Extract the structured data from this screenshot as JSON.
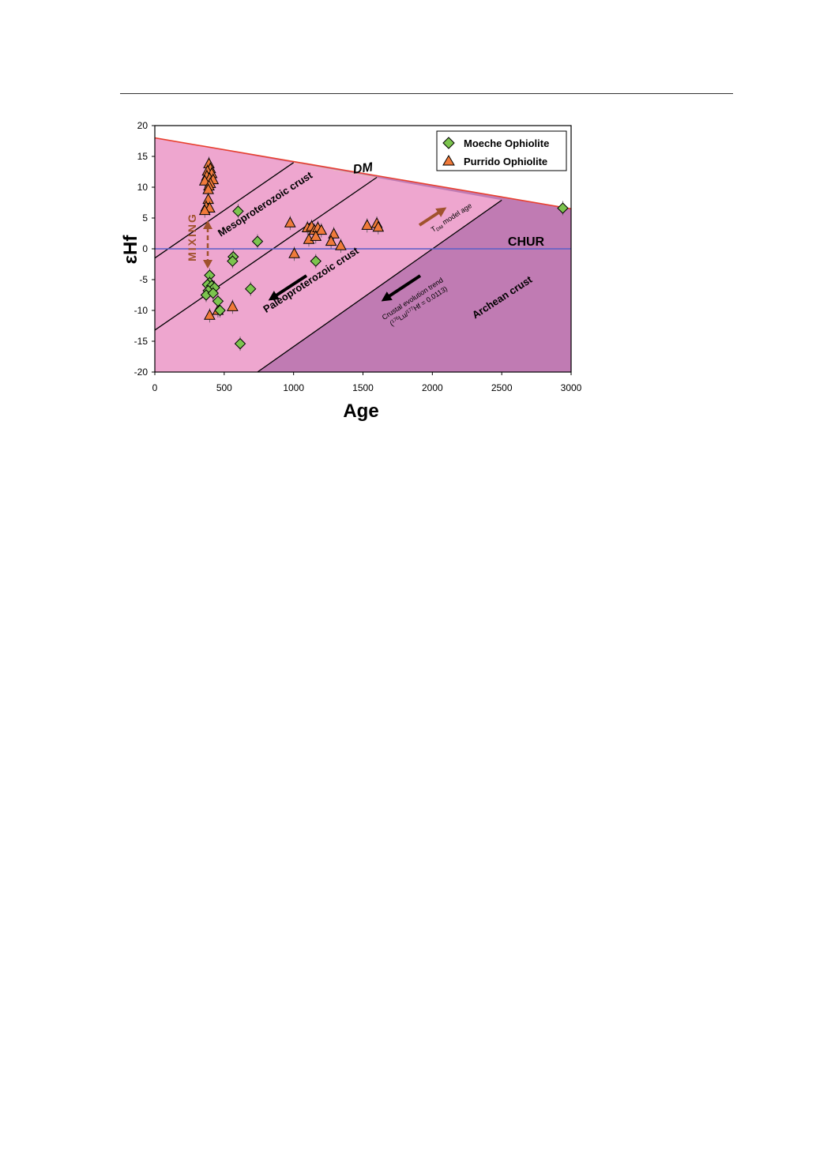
{
  "chart_data": {
    "type": "scatter",
    "xlabel": "Age",
    "ylabel": "εHf",
    "xlim": [
      0,
      3000
    ],
    "ylim": [
      -20,
      20
    ],
    "xticks": [
      0,
      500,
      1000,
      1500,
      2000,
      2500,
      3000
    ],
    "yticks": [
      20,
      15,
      10,
      5,
      0,
      -5,
      -10,
      -15,
      -20
    ],
    "legend_position": "top-right",
    "reference_lines": {
      "dm": {
        "label": "DM",
        "color": "#e8402f",
        "from": [
          0,
          18
        ],
        "to": [
          3000,
          6.5
        ]
      },
      "chur": {
        "label": "CHUR",
        "color": "#5a5fc8",
        "y": 0
      }
    },
    "regions": {
      "meso": {
        "label": "Mesoproterozoic crust",
        "color": "#fbee9a"
      },
      "paleo": {
        "label": "Paleoproterozoic crust",
        "color": "#eea6cf"
      },
      "archean": {
        "label": "Archean crust",
        "color": "#c07bb3"
      }
    },
    "region_boundaries": [
      {
        "from": [
          0,
          -1.5
        ],
        "to": [
          1000,
          14
        ]
      },
      {
        "from": [
          0,
          -13.2
        ],
        "to": [
          1600,
          11.6
        ]
      },
      {
        "from": [
          740,
          -20
        ],
        "to": [
          2500,
          7.9
        ]
      }
    ],
    "annotations": {
      "mixing": "MIXING",
      "model_age_main": "T",
      "model_age_sub": "DM",
      "model_age_rest": " model age",
      "trend_line1": "Crustal evolution trend",
      "trend_line2_a": "(",
      "trend_line2_sup1": "176",
      "trend_line2_b": "Lu/",
      "trend_line2_sup2": "177",
      "trend_line2_c": "Hf = 0.0113)"
    },
    "series": [
      {
        "name": "Moeche Ophiolite",
        "marker": "diamond",
        "color": "#7cc44e",
        "points": [
          [
            600,
            6.1
          ],
          [
            740,
            1.2
          ],
          [
            565,
            -1.3
          ],
          [
            560,
            -2.0
          ],
          [
            1160,
            -2.0
          ],
          [
            395,
            -4.3
          ],
          [
            395,
            -5.5
          ],
          [
            380,
            -5.8
          ],
          [
            410,
            -6.0
          ],
          [
            430,
            -6.3
          ],
          [
            385,
            -6.8
          ],
          [
            370,
            -7.5
          ],
          [
            420,
            -7.2
          ],
          [
            455,
            -8.5
          ],
          [
            470,
            -10.0
          ],
          [
            690,
            -6.5
          ],
          [
            615,
            -15.4
          ],
          [
            2940,
            6.6
          ]
        ]
      },
      {
        "name": "Purrido Ophiolite",
        "marker": "triangle",
        "color": "#f07a3a",
        "points": [
          [
            390,
            13.8
          ],
          [
            400,
            13.0
          ],
          [
            380,
            12.6
          ],
          [
            410,
            12.2
          ],
          [
            375,
            11.8
          ],
          [
            395,
            11.4
          ],
          [
            420,
            11.2
          ],
          [
            360,
            11.0
          ],
          [
            400,
            10.6
          ],
          [
            390,
            10.2
          ],
          [
            385,
            9.6
          ],
          [
            385,
            8.0
          ],
          [
            370,
            6.8
          ],
          [
            395,
            6.6
          ],
          [
            360,
            6.2
          ],
          [
            975,
            4.2
          ],
          [
            1005,
            -0.8
          ],
          [
            1100,
            3.4
          ],
          [
            1130,
            3.6
          ],
          [
            1150,
            3.0
          ],
          [
            1175,
            3.4
          ],
          [
            1200,
            3.0
          ],
          [
            1110,
            1.5
          ],
          [
            1160,
            2.0
          ],
          [
            1290,
            2.4
          ],
          [
            1270,
            1.2
          ],
          [
            1340,
            0.5
          ],
          [
            1530,
            3.8
          ],
          [
            1600,
            4.1
          ],
          [
            1610,
            3.5
          ],
          [
            560,
            -9.4
          ],
          [
            395,
            -10.8
          ],
          [
            455,
            -10.0
          ]
        ]
      }
    ]
  }
}
